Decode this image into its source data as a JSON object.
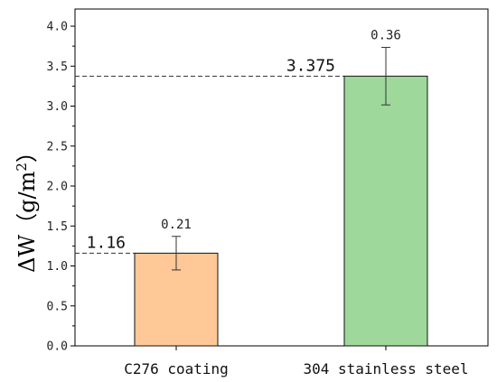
{
  "chart_data": {
    "type": "bar",
    "categories": [
      "C276 coating",
      "304 stainless steel"
    ],
    "values": [
      1.16,
      3.375
    ],
    "errors": [
      0.21,
      0.36
    ],
    "value_labels": [
      "1.16",
      "3.375"
    ],
    "error_labels": [
      "0.21",
      "0.36"
    ],
    "ylabel": "ΔW（g/m²）",
    "ylabel_parts": {
      "main": "ΔW（g/m",
      "sup": "2",
      "close": "）"
    },
    "ylim": [
      0,
      4.0
    ],
    "yticks": [
      "0.0",
      "0.5",
      "1.0",
      "1.5",
      "2.0",
      "2.5",
      "3.0",
      "3.5",
      "4.0"
    ],
    "colors": [
      "#ffc896",
      "#9ed89b"
    ],
    "grid": false,
    "reference_lines": "dashed horizontal lines from y-axis to each bar top"
  }
}
